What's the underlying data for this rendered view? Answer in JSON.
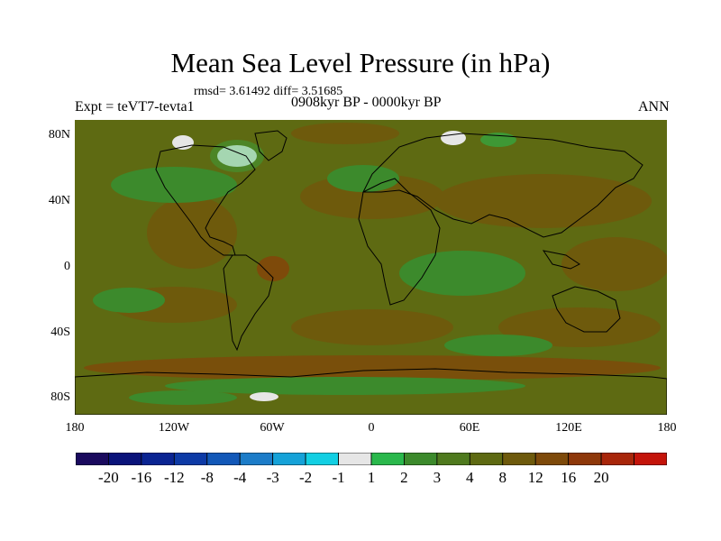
{
  "title": "Mean Sea Level Pressure (in hPa)",
  "stats": "rmsd= 3.61492 diff= 3.51685",
  "experiment": "Expt = teVT7-tevta1",
  "period": "0908kyr BP - 0000kyr BP",
  "season": "ANN",
  "lat_labels": [
    "80N",
    "40N",
    "0",
    "40S",
    "80S"
  ],
  "lon_labels": [
    "180",
    "120W",
    "60W",
    "0",
    "60E",
    "120E",
    "180"
  ],
  "colorbar": {
    "colors": [
      "#1a0a5e",
      "#0a137a",
      "#0a2492",
      "#0d3aa6",
      "#1258b8",
      "#1c7cc8",
      "#15a2d8",
      "#12cfe3",
      "#e6e6e6",
      "#2ab84c",
      "#3c8a2c",
      "#4f7a1e",
      "#5e6a12",
      "#6e5a0c",
      "#7e4a0a",
      "#8e380a",
      "#a8260a",
      "#c4140a"
    ],
    "labels": [
      "-20",
      "-16",
      "-12",
      "-8",
      "-4",
      "-3",
      "-2",
      "-1",
      "1",
      "2",
      "3",
      "4",
      "8",
      "12",
      "16",
      "20"
    ]
  }
}
